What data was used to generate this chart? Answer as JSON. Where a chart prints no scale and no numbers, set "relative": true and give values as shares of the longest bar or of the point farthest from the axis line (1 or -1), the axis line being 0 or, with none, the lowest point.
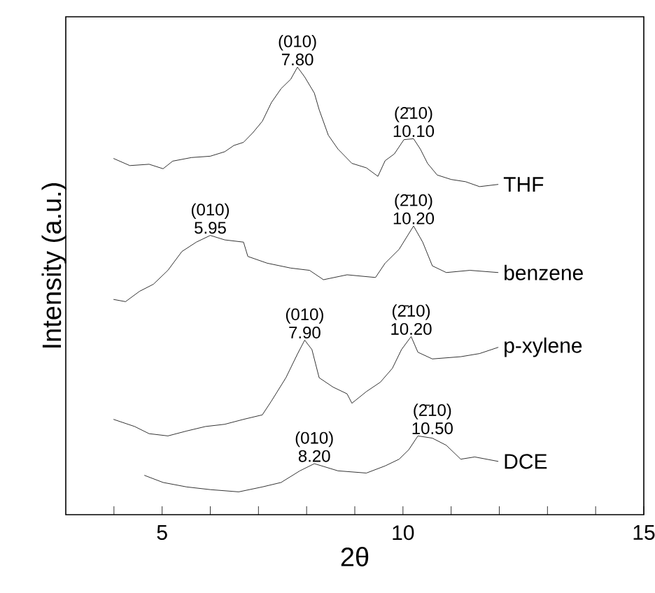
{
  "chart_data": {
    "type": "line",
    "relative": true,
    "xlabel": "2θ",
    "ylabel": "Intensity (a.u.)",
    "xlim": [
      3,
      15
    ],
    "xticks": [
      {
        "value": 4,
        "label": null
      },
      5,
      {
        "value": 6,
        "label": null
      },
      {
        "value": 7,
        "label": null
      },
      {
        "value": 8,
        "label": null
      },
      {
        "value": 9,
        "label": null
      },
      10,
      {
        "value": 11,
        "label": null
      },
      {
        "value": 12,
        "label": null
      },
      {
        "value": 13,
        "label": null
      },
      {
        "value": 14,
        "label": null
      },
      15
    ],
    "grid": false,
    "marker": "none",
    "line_style": "solid",
    "series": [
      {
        "name": "THF",
        "color": "#000000",
        "x": [
          3.99,
          4.33,
          4.73,
          5.02,
          5.22,
          5.61,
          6.0,
          6.3,
          6.49,
          6.69,
          6.88,
          7.08,
          7.27,
          7.47,
          7.67,
          7.81,
          7.96,
          8.16,
          8.26,
          8.45,
          8.65,
          8.94,
          9.24,
          9.48,
          9.63,
          9.82,
          10.02,
          10.22,
          10.36,
          10.51,
          10.71,
          11.0,
          11.3,
          11.59,
          11.98
        ],
        "values": [
          0.796,
          0.78,
          0.783,
          0.773,
          0.79,
          0.798,
          0.801,
          0.811,
          0.825,
          0.832,
          0.853,
          0.879,
          0.921,
          0.952,
          0.973,
          1.0,
          0.978,
          0.942,
          0.905,
          0.848,
          0.817,
          0.785,
          0.775,
          0.756,
          0.791,
          0.806,
          0.838,
          0.84,
          0.817,
          0.785,
          0.759,
          0.749,
          0.744,
          0.733,
          0.738
        ]
      },
      {
        "name": "benzene",
        "color": "#000000",
        "x": [
          3.99,
          4.24,
          4.53,
          4.82,
          5.12,
          5.41,
          5.71,
          6.0,
          6.3,
          6.69,
          6.78,
          7.18,
          7.67,
          8.06,
          8.35,
          8.84,
          9.43,
          9.63,
          9.92,
          10.22,
          10.41,
          10.61,
          10.9,
          11.39,
          11.98
        ],
        "values": [
          0.481,
          0.476,
          0.499,
          0.515,
          0.546,
          0.588,
          0.609,
          0.624,
          0.614,
          0.609,
          0.577,
          0.562,
          0.551,
          0.546,
          0.525,
          0.536,
          0.53,
          0.562,
          0.593,
          0.645,
          0.609,
          0.556,
          0.541,
          0.546,
          0.541
        ]
      },
      {
        "name": "p-xylene",
        "color": "#000000",
        "x": [
          3.99,
          4.43,
          4.73,
          5.12,
          5.51,
          5.9,
          6.3,
          6.69,
          7.08,
          7.27,
          7.57,
          7.81,
          7.96,
          8.11,
          8.26,
          8.55,
          8.84,
          8.94,
          9.24,
          9.53,
          9.78,
          9.97,
          10.17,
          10.31,
          10.61,
          11.2,
          11.59,
          11.98
        ],
        "values": [
          0.213,
          0.197,
          0.181,
          0.176,
          0.187,
          0.197,
          0.202,
          0.213,
          0.223,
          0.254,
          0.306,
          0.359,
          0.39,
          0.369,
          0.306,
          0.285,
          0.27,
          0.249,
          0.275,
          0.296,
          0.327,
          0.369,
          0.398,
          0.363,
          0.348,
          0.353,
          0.36,
          0.374
        ]
      },
      {
        "name": "DCE",
        "color": "#000000",
        "x": [
          4.63,
          5.02,
          5.51,
          6.0,
          6.59,
          7.08,
          7.47,
          7.86,
          8.16,
          8.65,
          9.24,
          9.63,
          9.92,
          10.12,
          10.31,
          10.61,
          10.9,
          11.2,
          11.49,
          11.98
        ],
        "values": [
          0.088,
          0.072,
          0.062,
          0.056,
          0.051,
          0.062,
          0.072,
          0.098,
          0.114,
          0.098,
          0.093,
          0.109,
          0.124,
          0.145,
          0.176,
          0.171,
          0.155,
          0.124,
          0.129,
          0.119
        ]
      }
    ],
    "annotations": [
      {
        "text": "(010) 7.80",
        "x": 7.81,
        "y": 1.0
      },
      {
        "text": "(2̄10) 10.10",
        "x": 10.22,
        "y": 0.84
      },
      {
        "text": "(010) 5.95",
        "x": 6.0,
        "y": 0.624
      },
      {
        "text": "(2̄10) 10.20",
        "x": 10.22,
        "y": 0.645
      },
      {
        "text": "(010) 7.90",
        "x": 7.96,
        "y": 0.39
      },
      {
        "text": "(2̄10) 10.20",
        "x": 10.17,
        "y": 0.398
      },
      {
        "text": "(010) 8.20",
        "x": 8.16,
        "y": 0.114
      },
      {
        "text": "(2̄10) 10.50",
        "x": 10.61,
        "y": 0.176
      }
    ]
  }
}
